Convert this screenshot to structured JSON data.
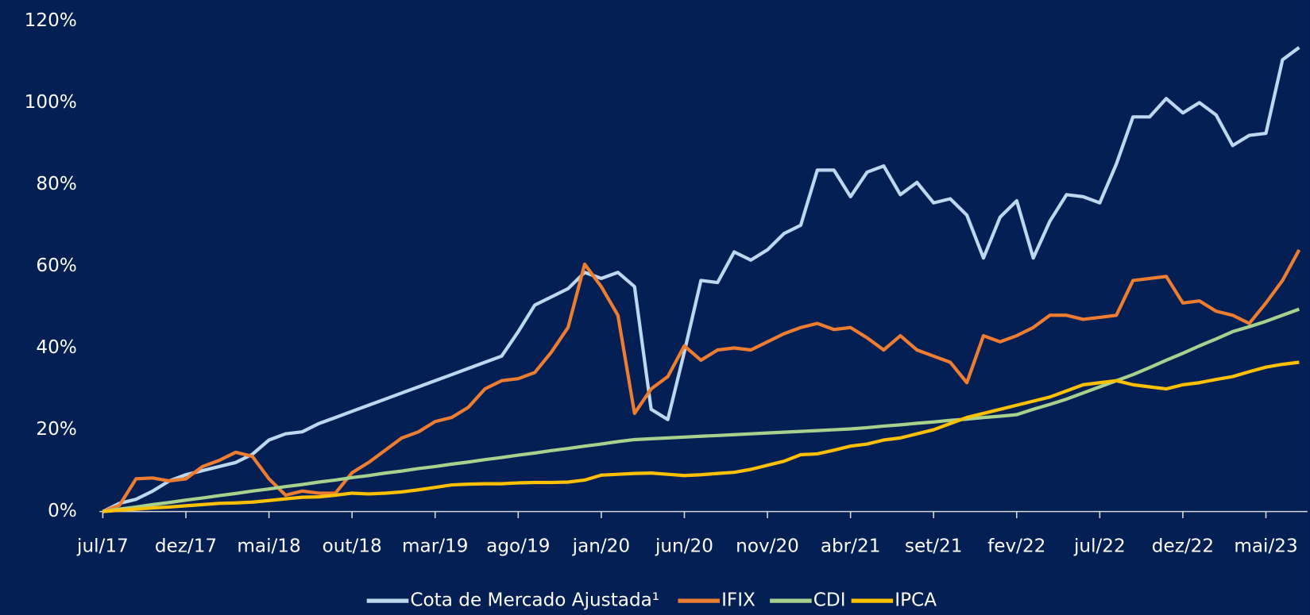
{
  "chart_data": {
    "type": "line",
    "categories": [
      "jul/17",
      null,
      null,
      null,
      null,
      "dez/17",
      null,
      null,
      null,
      null,
      "mai/18",
      null,
      null,
      null,
      null,
      "out/18",
      null,
      null,
      null,
      null,
      "mar/19",
      null,
      null,
      null,
      null,
      "ago/19",
      null,
      null,
      null,
      null,
      "jan/20",
      null,
      null,
      null,
      null,
      "jun/20",
      null,
      null,
      null,
      null,
      "nov/20",
      null,
      null,
      null,
      null,
      "abr/21",
      null,
      null,
      null,
      null,
      "set/21",
      null,
      null,
      null,
      null,
      "fev/22",
      null,
      null,
      null,
      null,
      "jul/22",
      null,
      null,
      null,
      null,
      "dez/22",
      null,
      null,
      null,
      null,
      "mai/23",
      null,
      null
    ],
    "series": [
      {
        "name": "Cota de Mercado Ajustada¹",
        "color": "#bdd7ee",
        "values": [
          0,
          2,
          3,
          5,
          7.5,
          9,
          10,
          11,
          12,
          14,
          17.5,
          19,
          19.5,
          21.5,
          23,
          24.5,
          26,
          27.5,
          29,
          30.5,
          32,
          33.5,
          35,
          36.5,
          38,
          44,
          50.5,
          52.5,
          54.5,
          58.5,
          57,
          58.5,
          55,
          25,
          22.5,
          39,
          56.5,
          56,
          63.5,
          61.5,
          64,
          68,
          70,
          83.5,
          83.5,
          77,
          83,
          84.5,
          77.5,
          80.5,
          75.5,
          76.5,
          72.5,
          62,
          72,
          76,
          62,
          71,
          77.5,
          77,
          75.5,
          85,
          96.5,
          96.5,
          101,
          97.5,
          100,
          97,
          89.5,
          92,
          92.5,
          110.5,
          113.5
        ]
      },
      {
        "name": "IFIX",
        "color": "#ed7d31",
        "values": [
          0,
          1.5,
          8,
          8.2,
          7.5,
          8,
          11,
          12.5,
          14.5,
          13.5,
          8,
          4,
          5,
          4.5,
          4.5,
          9.5,
          12,
          15,
          18,
          19.5,
          22,
          23,
          25.5,
          30,
          32,
          32.5,
          34,
          39,
          45,
          60.5,
          55,
          48,
          24,
          30,
          33,
          40.5,
          37,
          39.5,
          40,
          39.5,
          41.5,
          43.5,
          45,
          46,
          44.5,
          45,
          42.5,
          39.5,
          43,
          39.5,
          38,
          36.5,
          31.5,
          43,
          41.5,
          43,
          45,
          48,
          48,
          47,
          47.5,
          48,
          56.5,
          57,
          57.5,
          51,
          51.5,
          49,
          48,
          46,
          51,
          56.5,
          64
        ]
      },
      {
        "name": "CDI",
        "color": "#a9d18e",
        "values": [
          0,
          0.6,
          1.1,
          1.7,
          2.2,
          2.8,
          3.3,
          3.9,
          4.4,
          5,
          5.5,
          6.1,
          6.6,
          7.2,
          7.7,
          8.3,
          8.8,
          9.4,
          9.9,
          10.5,
          11,
          11.6,
          12.1,
          12.7,
          13.2,
          13.8,
          14.3,
          14.9,
          15.4,
          16,
          16.5,
          17.1,
          17.6,
          17.8,
          18,
          18.2,
          18.4,
          18.6,
          18.8,
          19,
          19.2,
          19.4,
          19.6,
          19.8,
          20,
          20.2,
          20.5,
          20.9,
          21.2,
          21.6,
          21.9,
          22.3,
          22.6,
          23,
          23.3,
          23.7,
          25,
          26.2,
          27.5,
          29,
          30.5,
          32,
          33.5,
          35.2,
          37,
          38.7,
          40.5,
          42.2,
          44,
          45.2,
          46.5,
          48,
          49.5
        ]
      },
      {
        "name": "IPCA",
        "color": "#ffc000",
        "values": [
          0,
          0.3,
          0.6,
          0.9,
          1.1,
          1.4,
          1.7,
          2,
          2.1,
          2.3,
          2.7,
          3.1,
          3.5,
          3.6,
          4,
          4.5,
          4.3,
          4.5,
          4.8,
          5.3,
          5.9,
          6.5,
          6.7,
          6.8,
          6.8,
          7,
          7.1,
          7.1,
          7.2,
          7.7,
          8.9,
          9.1,
          9.3,
          9.4,
          9.1,
          8.8,
          9,
          9.3,
          9.6,
          10.3,
          11.3,
          12.3,
          13.9,
          14.1,
          15,
          16,
          16.5,
          17.5,
          18,
          19,
          20,
          21.5,
          23,
          24,
          25,
          26,
          27,
          28,
          29.5,
          31,
          31.5,
          32,
          31,
          30.5,
          30,
          31,
          31.5,
          32.3,
          33,
          34.2,
          35.3,
          36,
          36.5
        ]
      }
    ],
    "ylim": [
      0,
      120
    ],
    "yticks": [
      {
        "value": 0,
        "label": "0%"
      },
      {
        "value": 20,
        "label": "20%"
      },
      {
        "value": 40,
        "label": "40%"
      },
      {
        "value": 60,
        "label": "60%"
      },
      {
        "value": 80,
        "label": "80%"
      },
      {
        "value": 100,
        "label": "100%"
      },
      {
        "value": 120,
        "label": "120%"
      }
    ],
    "grid": false,
    "legend": "bottom"
  }
}
